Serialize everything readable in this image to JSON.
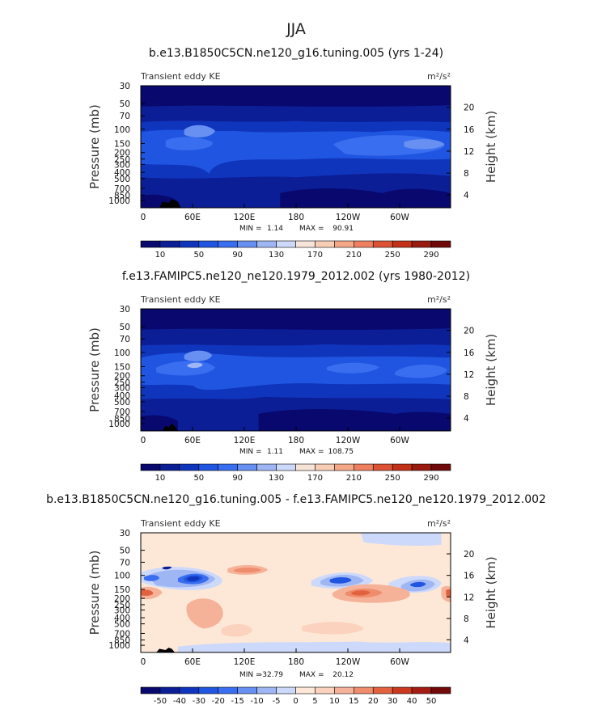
{
  "figure": {
    "title": "JJA"
  },
  "chart_data": [
    {
      "type": "heatmap",
      "title": "b.e13.B1850C5CN.ne120_g16.tuning.005 (yrs 1-24)",
      "subtitle_left": "Transient eddy KE",
      "units": "m²/s²",
      "ylabel": "Pressure  (mb)",
      "ylabel_right": "Height  (km)",
      "x_ticks": [
        "0",
        "60E",
        "120E",
        "180",
        "120W",
        "60W"
      ],
      "y_ticks": [
        "30",
        "50",
        "70",
        "100",
        "150",
        "200",
        "250",
        "300",
        "400",
        "500",
        "700",
        "850",
        "1000"
      ],
      "y_ticks_right": [
        "20",
        "16",
        "12",
        "8",
        "4"
      ],
      "x_range": [
        0,
        360
      ],
      "y_range_mb": [
        1000,
        30
      ],
      "y_scale": "log",
      "stats": {
        "min_label": "MIN =",
        "min": "1.14",
        "max_label": "MAX =",
        "max": "90.91"
      },
      "colorbar": {
        "labels": [
          "10",
          "50",
          "90",
          "130",
          "170",
          "210",
          "250",
          "290"
        ],
        "colors": [
          "#08086e",
          "#0c1e96",
          "#1035bd",
          "#1f55e0",
          "#3a6ef0",
          "#6890f2",
          "#9fb6f5",
          "#ccd9fa",
          "#f6e4d8",
          "#f8cdb6",
          "#f4a888",
          "#ee8060",
          "#dd5235",
          "#c23018",
          "#9a1a10",
          "#700a0a"
        ]
      }
    },
    {
      "type": "heatmap",
      "title": "f.e13.FAMIPC5.ne120_ne120.1979_2012.002 (yrs 1980-2012)",
      "subtitle_left": "Transient eddy KE",
      "units": "m²/s²",
      "ylabel": "Pressure  (mb)",
      "ylabel_right": "Height  (km)",
      "x_ticks": [
        "0",
        "60E",
        "120E",
        "180",
        "120W",
        "60W"
      ],
      "y_ticks": [
        "30",
        "50",
        "70",
        "100",
        "150",
        "200",
        "250",
        "300",
        "400",
        "500",
        "700",
        "850",
        "1000"
      ],
      "y_ticks_right": [
        "20",
        "16",
        "12",
        "8",
        "4"
      ],
      "x_range": [
        0,
        360
      ],
      "y_range_mb": [
        1000,
        30
      ],
      "y_scale": "log",
      "stats": {
        "min_label": "MIN =",
        "min": "1.11",
        "max_label": "MAX =",
        "max": "108.75"
      },
      "colorbar": {
        "labels": [
          "10",
          "50",
          "90",
          "130",
          "170",
          "210",
          "250",
          "290"
        ],
        "colors": [
          "#08086e",
          "#0c1e96",
          "#1035bd",
          "#1f55e0",
          "#3a6ef0",
          "#6890f2",
          "#9fb6f5",
          "#ccd9fa",
          "#f6e4d8",
          "#f8cdb6",
          "#f4a888",
          "#ee8060",
          "#dd5235",
          "#c23018",
          "#9a1a10",
          "#700a0a"
        ]
      }
    },
    {
      "type": "heatmap",
      "title": "b.e13.B1850C5CN.ne120_g16.tuning.005 - f.e13.FAMIPC5.ne120_ne120.1979_2012.002",
      "subtitle_left": "Transient eddy KE",
      "units": "m²/s²",
      "ylabel": "Pressure  (mb)",
      "ylabel_right": "Height  (km)",
      "x_ticks": [
        "0",
        "60E",
        "120E",
        "180",
        "120W",
        "60W"
      ],
      "y_ticks": [
        "30",
        "50",
        "70",
        "100",
        "150",
        "200",
        "250",
        "300",
        "400",
        "500",
        "700",
        "850",
        "1000"
      ],
      "y_ticks_right": [
        "20",
        "16",
        "12",
        "8",
        "4"
      ],
      "x_range": [
        0,
        360
      ],
      "y_range_mb": [
        1000,
        30
      ],
      "y_scale": "log",
      "stats": {
        "min_label": "MIN =",
        "min": "-32.79",
        "max_label": "MAX =",
        "max": "20.12"
      },
      "colorbar": {
        "labels": [
          "-50",
          "-40",
          "-30",
          "-20",
          "-15",
          "-10",
          "-5",
          "0",
          "5",
          "10",
          "15",
          "20",
          "30",
          "40",
          "50"
        ],
        "colors": [
          "#08086e",
          "#0c1e96",
          "#1035bd",
          "#1f55e0",
          "#3a6ef0",
          "#6890f2",
          "#9fb6f5",
          "#ccd9fa",
          "#fde8d8",
          "#fbd2bd",
          "#f6b298",
          "#ee8c6c",
          "#e2613f",
          "#c9381f",
          "#a51c12",
          "#720a0a"
        ]
      }
    }
  ]
}
